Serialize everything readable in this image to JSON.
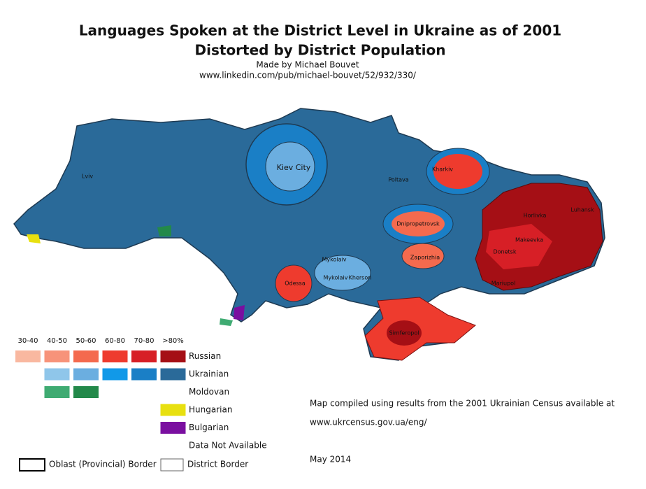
{
  "header": {
    "title_lines": [
      "Languages Spoken at the District Level in Ukraine as of 2001",
      "Distorted by District Population"
    ],
    "author": "Made by Michael Bouvet",
    "url": "www.linkedin.com/pub/michael-bouvet/52/932/330/"
  },
  "map": {
    "labels": [
      "Lviv",
      "Kiev City",
      "Poltava",
      "Kharkiv",
      "Luhansk",
      "Horlivka",
      "Dnipropetrovsk",
      "Makeevka",
      "Donetsk",
      "Zaporizhia",
      "Mykolaiv",
      "Mykolaiv",
      "Kherson",
      "Odessa",
      "Mariupol",
      "Simferopol"
    ]
  },
  "legend": {
    "headers": [
      "30-40",
      "40-50",
      "50-60",
      "60-80",
      "70-80",
      ">80%"
    ],
    "rows": [
      {
        "name": "Russian",
        "colors": [
          "#f9b8a0",
          "#f7937a",
          "#f46a4e",
          "#ee3b2e",
          "#d71f26",
          "#a50f15"
        ]
      },
      {
        "name": "Ukrainian",
        "colors": [
          null,
          "#8fc6ea",
          "#6baee0",
          "#1199e8",
          "#1a7fc6",
          "#2a6a99"
        ]
      },
      {
        "name": "Moldovan",
        "colors": [
          null,
          "#3fab72",
          "#23894a",
          null,
          null,
          null
        ]
      },
      {
        "name": "Hungarian",
        "colors": [
          null,
          null,
          null,
          null,
          null,
          "#e8e010"
        ]
      },
      {
        "name": "Bulgarian",
        "colors": [
          null,
          null,
          null,
          null,
          null,
          "#7a0fa0"
        ]
      },
      {
        "name": "Data Not Available",
        "colors": [
          null,
          null,
          null,
          null,
          null,
          null
        ]
      }
    ],
    "borders": [
      "Oblast (Provincial) Border",
      "District Border"
    ]
  },
  "notes": [
    "Map compiled using results from the 2001 Ukrainian Census available at",
    "www.ukrcensus.gov.ua/eng/",
    "May 2014"
  ]
}
